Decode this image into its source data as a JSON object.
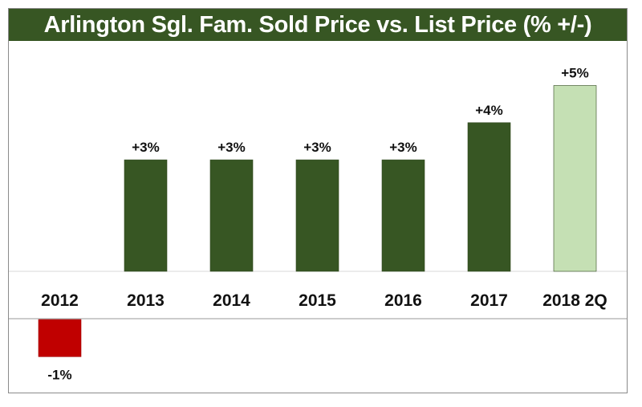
{
  "colors": {
    "title_bg": "#375623",
    "bar_positive": "#375623",
    "bar_highlight": "#c5e0b4",
    "bar_negative": "#c00000",
    "baseline": "#d9d9d9"
  },
  "chart_data": {
    "type": "bar",
    "title": "Arlington Sgl. Fam. Sold Price vs. List Price (% +/-)",
    "categories": [
      "2012",
      "2013",
      "2014",
      "2015",
      "2016",
      "2017",
      "2018 2Q"
    ],
    "values": [
      -1,
      3,
      3,
      3,
      3,
      4,
      5
    ],
    "data_labels": [
      "-1%",
      "+3%",
      "+3%",
      "+3%",
      "+3%",
      "+4%",
      "+5%"
    ],
    "highlight_category": "2018 2Q",
    "ylim": [
      -2.3,
      6
    ],
    "grid": false,
    "legend": "none",
    "xlabel": "",
    "ylabel": ""
  }
}
